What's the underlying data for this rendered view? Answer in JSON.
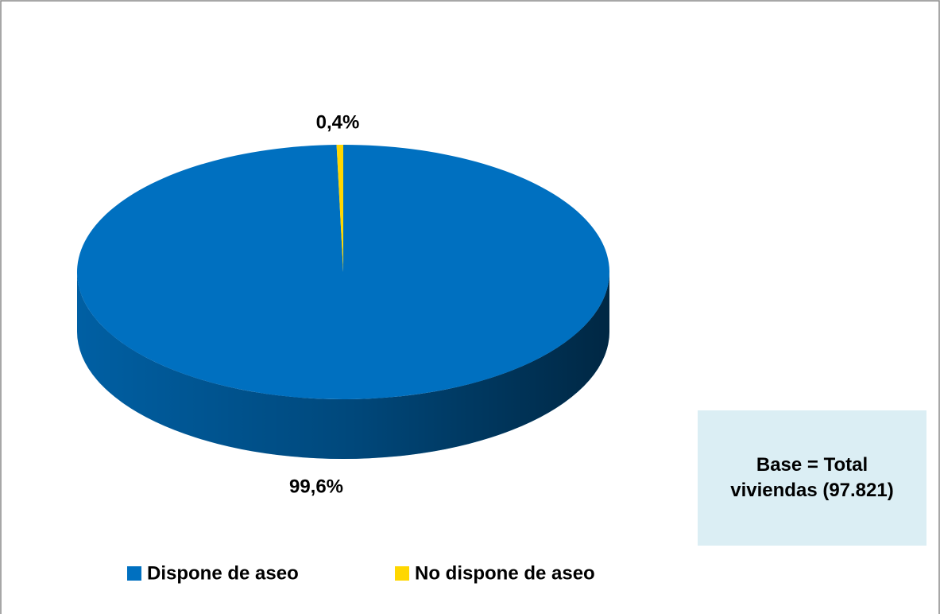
{
  "chart_data": {
    "type": "pie3d",
    "categories": [
      "Dispone de aseo",
      "No dispone de aseo"
    ],
    "values": [
      99.6,
      0.4
    ],
    "value_labels": [
      "99,6%",
      "0,4%"
    ],
    "colors": [
      "#0070c0",
      "#ffd700"
    ],
    "annotation": "Base = Total viviendas (97.821)",
    "legend": "bottom"
  }
}
